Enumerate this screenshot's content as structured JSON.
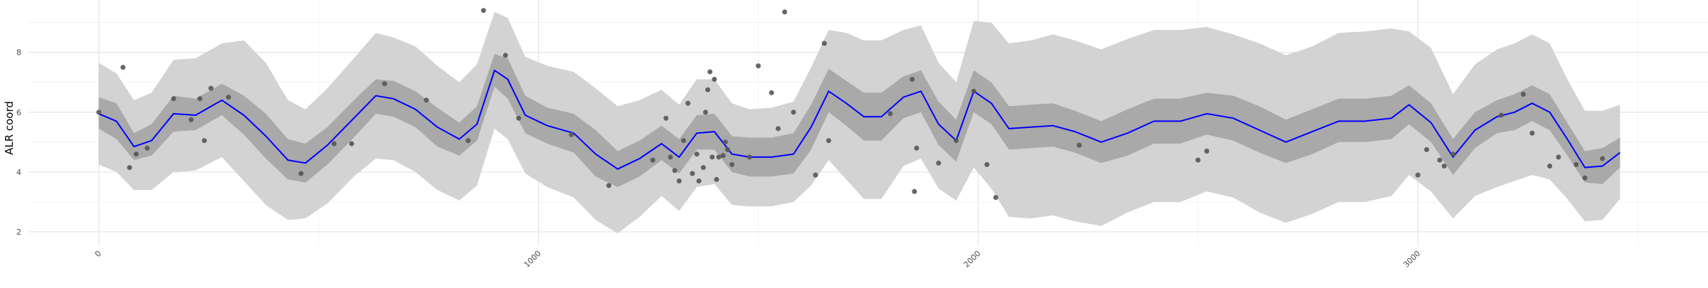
{
  "chart_data": {
    "type": "line",
    "title": "",
    "xlabel": "",
    "ylabel": "ALR coord",
    "xlim": [
      -160,
      3660
    ],
    "ylim": [
      1.55,
      9.75
    ],
    "xticks": [
      0,
      1000,
      2000,
      3000
    ],
    "xtick_labels": [
      "0",
      "1000",
      "2000",
      "3000"
    ],
    "yticks": [
      2,
      4,
      6,
      8
    ],
    "ytick_labels": [
      "2",
      "4",
      "6",
      "8"
    ],
    "grid": true,
    "legend": "none",
    "colors": {
      "mean_line": "#0000ff",
      "inner_band": "#a9a9a9",
      "outer_band": "#d3d3d3",
      "points": "#555555",
      "grid_major": "#e3e3e3",
      "grid_minor": "#f0f0f0"
    },
    "series": [
      {
        "type": "line",
        "x": [
          0,
          40,
          80,
          120,
          170,
          220,
          280,
          330,
          380,
          430,
          470,
          520,
          580,
          630,
          670,
          720,
          770,
          820,
          860,
          900,
          930,
          970,
          1020,
          1080,
          1130,
          1180,
          1230,
          1280,
          1320,
          1360,
          1400,
          1440,
          1480,
          1530,
          1580,
          1620,
          1660,
          1700,
          1740,
          1780,
          1830,
          1870,
          1910,
          1950,
          1990,
          2030,
          2070,
          2120,
          2170,
          2220,
          2280,
          2340,
          2400,
          2460,
          2520,
          2580,
          2640,
          2700,
          2760,
          2820,
          2880,
          2940,
          2980,
          3030,
          3080,
          3130,
          3180,
          3220,
          3260,
          3300,
          3340,
          3380,
          3420,
          3460
        ],
        "values": [
          5.95,
          5.7,
          4.85,
          5.05,
          5.95,
          5.9,
          6.4,
          5.9,
          5.2,
          4.4,
          4.3,
          4.9,
          5.8,
          6.55,
          6.45,
          6.1,
          5.5,
          5.1,
          5.6,
          7.4,
          7.1,
          5.9,
          5.55,
          5.3,
          4.6,
          4.1,
          4.45,
          4.95,
          4.5,
          5.3,
          5.35,
          4.6,
          4.5,
          4.5,
          4.6,
          5.5,
          6.7,
          6.3,
          5.85,
          5.85,
          6.5,
          6.7,
          5.6,
          5.05,
          6.7,
          6.3,
          5.45,
          5.5,
          5.55,
          5.35,
          5.0,
          5.3,
          5.7,
          5.7,
          5.95,
          5.8,
          5.4,
          5.0,
          5.35,
          5.7,
          5.7,
          5.8,
          6.25,
          5.65,
          4.5,
          5.4,
          5.85,
          6.0,
          6.3,
          6.0,
          5.1,
          4.15,
          4.2,
          4.65
        ]
      },
      {
        "type": "band",
        "name_role": "inner",
        "x": [
          0,
          40,
          80,
          120,
          170,
          220,
          280,
          330,
          380,
          430,
          470,
          520,
          580,
          630,
          670,
          720,
          770,
          820,
          860,
          900,
          930,
          970,
          1020,
          1080,
          1130,
          1180,
          1230,
          1280,
          1320,
          1360,
          1400,
          1440,
          1480,
          1530,
          1580,
          1620,
          1660,
          1700,
          1740,
          1780,
          1830,
          1870,
          1910,
          1950,
          1990,
          2030,
          2070,
          2120,
          2170,
          2220,
          2280,
          2340,
          2400,
          2460,
          2520,
          2580,
          2640,
          2700,
          2760,
          2820,
          2880,
          2940,
          2980,
          3030,
          3080,
          3130,
          3180,
          3220,
          3260,
          3300,
          3340,
          3380,
          3420,
          3460
        ],
        "lower": [
          5.45,
          5.1,
          4.4,
          4.55,
          5.35,
          5.4,
          5.9,
          5.25,
          4.45,
          3.75,
          3.65,
          4.25,
          5.15,
          5.95,
          5.85,
          5.5,
          4.85,
          4.55,
          5.05,
          6.85,
          6.45,
          5.3,
          4.95,
          4.65,
          3.85,
          3.5,
          3.85,
          4.4,
          3.95,
          4.75,
          4.75,
          4.0,
          3.85,
          3.85,
          3.95,
          4.75,
          6.0,
          5.55,
          5.05,
          5.05,
          5.8,
          6.0,
          4.9,
          4.35,
          6.0,
          5.6,
          4.75,
          4.8,
          4.85,
          4.65,
          4.3,
          4.55,
          4.95,
          4.95,
          5.25,
          5.05,
          4.65,
          4.3,
          4.6,
          5.0,
          5.0,
          5.1,
          5.6,
          5.0,
          3.9,
          4.8,
          5.3,
          5.4,
          5.7,
          5.4,
          4.55,
          3.65,
          3.6,
          4.15
        ],
        "upper": [
          6.5,
          6.3,
          5.3,
          5.6,
          6.55,
          6.45,
          6.95,
          6.55,
          5.95,
          5.1,
          4.95,
          5.5,
          6.4,
          7.1,
          7.05,
          6.7,
          6.15,
          5.65,
          6.2,
          7.95,
          7.8,
          6.55,
          6.15,
          5.95,
          5.4,
          4.7,
          5.05,
          5.55,
          5.1,
          5.9,
          5.95,
          5.2,
          5.15,
          5.15,
          5.3,
          6.25,
          7.45,
          7.05,
          6.65,
          6.65,
          7.2,
          7.4,
          6.35,
          5.75,
          7.4,
          7.0,
          6.2,
          6.25,
          6.3,
          6.05,
          5.7,
          6.1,
          6.45,
          6.45,
          6.65,
          6.55,
          6.2,
          5.75,
          6.1,
          6.45,
          6.45,
          6.55,
          6.9,
          6.3,
          5.1,
          6.0,
          6.4,
          6.6,
          6.9,
          6.6,
          5.65,
          4.7,
          4.8,
          5.15
        ]
      },
      {
        "type": "band",
        "name_role": "outer",
        "x": [
          0,
          40,
          80,
          120,
          170,
          220,
          280,
          330,
          380,
          430,
          470,
          520,
          580,
          630,
          670,
          720,
          770,
          820,
          860,
          900,
          930,
          970,
          1020,
          1080,
          1130,
          1180,
          1230,
          1280,
          1320,
          1360,
          1400,
          1440,
          1480,
          1530,
          1580,
          1620,
          1660,
          1700,
          1740,
          1780,
          1830,
          1870,
          1910,
          1950,
          1990,
          2030,
          2070,
          2120,
          2170,
          2220,
          2280,
          2340,
          2400,
          2460,
          2520,
          2580,
          2640,
          2700,
          2760,
          2820,
          2880,
          2940,
          2980,
          3030,
          3080,
          3130,
          3180,
          3220,
          3260,
          3300,
          3340,
          3380,
          3420,
          3460
        ],
        "lower": [
          4.25,
          4.0,
          3.4,
          3.4,
          4.0,
          4.05,
          4.5,
          3.7,
          2.9,
          2.4,
          2.45,
          2.95,
          3.85,
          4.45,
          4.4,
          4.0,
          3.4,
          3.05,
          3.55,
          5.45,
          5.1,
          3.95,
          3.5,
          3.15,
          2.4,
          1.95,
          2.5,
          3.2,
          2.7,
          3.5,
          3.6,
          2.9,
          2.85,
          2.85,
          3.0,
          3.55,
          4.4,
          3.75,
          3.1,
          3.1,
          4.2,
          4.45,
          3.45,
          3.05,
          4.15,
          3.45,
          2.5,
          2.45,
          2.55,
          2.35,
          2.2,
          2.65,
          3.0,
          3.0,
          3.35,
          3.15,
          2.65,
          2.3,
          2.6,
          3.0,
          3.0,
          3.2,
          3.9,
          3.35,
          2.45,
          3.2,
          3.5,
          3.7,
          3.9,
          3.75,
          3.1,
          2.35,
          2.4,
          3.1
        ],
        "upper": [
          7.65,
          7.3,
          6.4,
          6.65,
          7.75,
          7.8,
          8.3,
          8.4,
          7.65,
          6.4,
          6.1,
          6.8,
          7.8,
          8.65,
          8.5,
          8.2,
          7.55,
          7.0,
          7.6,
          9.35,
          9.15,
          7.85,
          7.55,
          7.35,
          6.8,
          6.2,
          6.4,
          6.75,
          6.25,
          7.1,
          7.1,
          6.3,
          6.1,
          6.15,
          6.35,
          7.5,
          8.75,
          8.65,
          8.4,
          8.4,
          8.75,
          8.9,
          7.65,
          7.0,
          9.05,
          9.0,
          8.3,
          8.4,
          8.6,
          8.4,
          8.1,
          8.45,
          8.75,
          8.75,
          8.85,
          8.6,
          8.3,
          7.9,
          8.2,
          8.65,
          8.7,
          8.8,
          8.7,
          8.15,
          6.6,
          7.6,
          8.1,
          8.3,
          8.6,
          8.3,
          7.1,
          6.05,
          6.05,
          6.25
        ]
      },
      {
        "type": "scatter",
        "x": [
          0,
          55,
          70,
          85,
          110,
          170,
          210,
          230,
          240,
          255,
          295,
          460,
          535,
          575,
          650,
          745,
          840,
          875,
          925,
          955,
          1075,
          1160,
          1260,
          1290,
          1300,
          1310,
          1320,
          1330,
          1340,
          1350,
          1360,
          1365,
          1375,
          1380,
          1385,
          1390,
          1395,
          1400,
          1405,
          1410,
          1420,
          1425,
          1430,
          1440,
          1480,
          1500,
          1530,
          1545,
          1560,
          1580,
          1630,
          1650,
          1660,
          1800,
          1850,
          1855,
          1860,
          1910,
          1950,
          1990,
          2020,
          2040,
          2230,
          2500,
          2520,
          3000,
          3020,
          3050,
          3060,
          3080,
          3190,
          3240,
          3260,
          3300,
          3320,
          3360,
          3380,
          3420
        ],
        "values": [
          6.0,
          7.5,
          4.15,
          4.6,
          4.8,
          6.45,
          5.75,
          6.45,
          5.05,
          6.8,
          6.5,
          3.95,
          4.95,
          4.95,
          6.95,
          6.4,
          5.05,
          9.4,
          7.9,
          5.8,
          5.25,
          3.55,
          4.4,
          5.8,
          4.5,
          4.05,
          3.7,
          5.05,
          6.3,
          3.95,
          4.6,
          3.7,
          4.15,
          6.0,
          6.75,
          7.35,
          4.5,
          7.1,
          3.75,
          4.5,
          4.55,
          5.0,
          4.75,
          4.25,
          4.5,
          7.55,
          6.65,
          5.45,
          9.35,
          6.0,
          3.9,
          8.3,
          5.05,
          5.95,
          7.1,
          3.35,
          4.8,
          4.3,
          5.05,
          6.7,
          4.25,
          3.15,
          4.9,
          4.4,
          4.7,
          3.9,
          4.75,
          4.4,
          4.2,
          4.6,
          5.9,
          6.6,
          5.3,
          4.2,
          4.5,
          4.25,
          3.8,
          4.45
        ]
      }
    ]
  }
}
